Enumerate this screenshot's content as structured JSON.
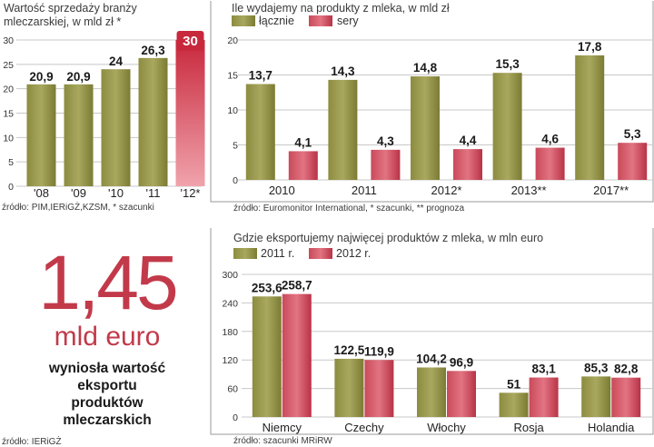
{
  "colors": {
    "olive_light": "#a8a85e",
    "olive_dark": "#6d6d2a",
    "red_light": "#e8818c",
    "red_dark": "#c22a3d",
    "grid": "#c8c8c8",
    "panel_border": "#9a9a9a",
    "accent": "#c23a4a"
  },
  "chart_data": [
    {
      "type": "bar",
      "title": "Wartość sprzedaży branży mleczarskiej, w mld zł *",
      "title_lines": [
        "Wartość sprzedaży branży",
        "mleczarskiej, w mld zł *"
      ],
      "categories": [
        "'08",
        "'09",
        "'10",
        "'11",
        "'12*"
      ],
      "values": [
        20.9,
        20.9,
        24,
        26.3,
        30
      ],
      "labels": [
        "20,9",
        "20,9",
        "24",
        "26,3",
        "30"
      ],
      "highlight_last": true,
      "ylim": [
        0,
        30
      ],
      "yticks": [
        0,
        5,
        10,
        15,
        20,
        25,
        30
      ],
      "source": "źródło: PIM,IERiGŻ,KZSM, * szacunki"
    },
    {
      "type": "bar",
      "title": "Ile wydajemy na produkty z mleka, w mld zł",
      "categories": [
        "2010",
        "2011",
        "2012*",
        "2013**",
        "2017**"
      ],
      "series": [
        {
          "name": "łącznie",
          "values": [
            13.7,
            14.3,
            14.8,
            15.3,
            17.8
          ],
          "labels": [
            "13,7",
            "14,3",
            "14,8",
            "15,3",
            "17,8"
          ]
        },
        {
          "name": "sery",
          "values": [
            4.1,
            4.3,
            4.4,
            4.6,
            5.3
          ],
          "labels": [
            "4,1",
            "4,3",
            "4,4",
            "4,6",
            "5,3"
          ]
        }
      ],
      "ylim": [
        0,
        20
      ],
      "yticks": [
        0,
        5,
        10,
        15,
        20
      ],
      "source": "źródło: Euromonitor International, * szacunki, ** prognoza"
    },
    {
      "type": "bar",
      "title": "Gdzie eksportujemy najwięcej produktów z mleka, w mln euro",
      "categories": [
        "Niemcy",
        "Czechy",
        "Włochy",
        "Rosja",
        "Holandia"
      ],
      "series": [
        {
          "name": "2011 r.",
          "values": [
            253.6,
            122.5,
            104.2,
            51,
            85.3
          ],
          "labels": [
            "253,6",
            "122,5",
            "104,2",
            "51",
            "85,3"
          ]
        },
        {
          "name": "2012 r.",
          "values": [
            258.7,
            119.9,
            96.9,
            83.1,
            82.8
          ],
          "labels": [
            "258,7",
            "119,9",
            "96,9",
            "83,1",
            "82,8"
          ]
        }
      ],
      "ylim": [
        0,
        300
      ],
      "yticks": [
        0,
        60,
        120,
        180,
        240,
        300
      ],
      "source": "źródło: szacunki MRiRW"
    }
  ],
  "stat": {
    "big_number": "1,45",
    "unit": "mld euro",
    "description_lines": [
      "wyniosła wartość",
      "eksportu",
      "produktów",
      "mleczarskich"
    ],
    "source": "źródło: IERiGŻ"
  }
}
